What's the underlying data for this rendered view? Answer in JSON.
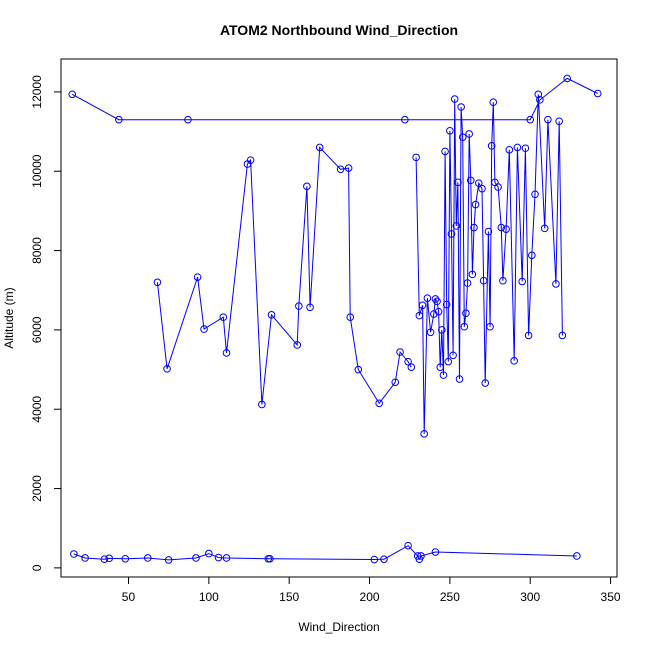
{
  "chart_data": {
    "type": "line",
    "title": "ATOM2 Northbound Wind_Direction",
    "xlabel": "Wind_Direction",
    "ylabel": "Altitude (m)",
    "xlim": [
      8,
      354
    ],
    "ylim": [
      -230,
      12830
    ],
    "xticks": [
      50,
      100,
      150,
      200,
      250,
      300,
      350
    ],
    "yticks": [
      0,
      2000,
      4000,
      6000,
      8000,
      10000,
      12000
    ],
    "grid": false,
    "legend": "none",
    "color": "#0000ff",
    "series": [
      {
        "x": [
          16,
          23,
          35,
          38,
          48,
          62,
          75,
          92,
          100,
          106,
          111,
          137,
          138,
          203,
          209,
          224,
          230,
          231,
          232,
          241,
          329
        ],
        "y": [
          350,
          250,
          220,
          240,
          230,
          250,
          200,
          250,
          360,
          260,
          250,
          230,
          230,
          210,
          220,
          560,
          300,
          220,
          300,
          400,
          300
        ]
      },
      {
        "x": [
          68,
          74,
          93,
          97,
          109,
          111,
          124,
          126,
          133,
          139,
          155,
          156,
          161,
          163,
          169,
          182,
          187,
          188,
          193,
          206,
          216,
          219,
          224,
          226
        ],
        "y": [
          7200,
          5020,
          7330,
          6020,
          6320,
          5420,
          10180,
          10280,
          4120,
          6380,
          5620,
          6600,
          9620,
          6570,
          10600,
          10050,
          10080,
          6320,
          5000,
          4150,
          4680,
          5440,
          5200,
          5060
        ]
      },
      {
        "x": [
          229,
          231,
          233,
          234,
          236,
          238,
          240,
          241,
          242,
          243,
          244,
          245,
          246,
          247,
          248,
          249,
          250,
          251,
          252,
          253,
          254,
          255,
          256,
          257,
          258,
          259,
          260,
          261,
          262,
          263,
          264,
          265,
          266,
          268,
          270,
          271,
          272,
          274,
          275,
          276,
          277,
          278,
          280,
          282,
          283,
          285,
          287,
          290,
          292,
          295,
          297,
          299,
          301,
          303,
          305,
          309,
          311,
          316,
          318,
          320
        ],
        "y": [
          10350,
          6360,
          6620,
          3380,
          6800,
          5940,
          6400,
          6780,
          6720,
          6460,
          5060,
          6000,
          4860,
          10500,
          6640,
          5200,
          11020,
          8420,
          5360,
          11820,
          8620,
          9720,
          4760,
          11620,
          10860,
          6080,
          6420,
          7180,
          10940,
          9770,
          7400,
          8580,
          9160,
          9700,
          9560,
          7240,
          4660,
          8480,
          6080,
          10640,
          11740,
          9720,
          9600,
          8580,
          7240,
          8540,
          10540,
          5220,
          10600,
          7220,
          10580,
          5860,
          7880,
          9420,
          11940,
          8560,
          11300,
          7160,
          11260,
          5860
        ]
      },
      {
        "x": [
          15,
          44,
          87,
          222,
          300,
          306,
          323,
          342
        ],
        "y": [
          11940,
          11300,
          11300,
          11300,
          11300,
          11800,
          12340,
          11960
        ]
      }
    ]
  }
}
